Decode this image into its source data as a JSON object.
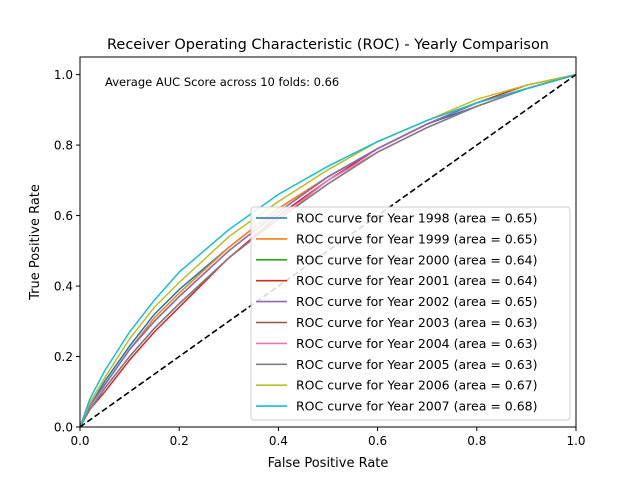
{
  "chart_data": {
    "type": "line",
    "title": "Receiver Operating Characteristic (ROC) - Yearly Comparison",
    "xlabel": "False Positive Rate",
    "ylabel": "True Positive Rate",
    "xlim": [
      0.0,
      1.0
    ],
    "ylim": [
      0.0,
      1.05
    ],
    "xticks": [
      0.0,
      0.2,
      0.4,
      0.6,
      0.8,
      1.0
    ],
    "yticks": [
      0.0,
      0.2,
      0.4,
      0.6,
      0.8,
      1.0
    ],
    "xtick_labels": [
      "0.0",
      "0.2",
      "0.4",
      "0.6",
      "0.8",
      "1.0"
    ],
    "ytick_labels": [
      "0.0",
      "0.2",
      "0.4",
      "0.6",
      "0.8",
      "1.0"
    ],
    "grid": false,
    "legend_placement": "lower-right",
    "annotation": "Average AUC Score across 10 folds: 0.66",
    "x": [
      0.0,
      0.02,
      0.05,
      0.1,
      0.15,
      0.2,
      0.3,
      0.4,
      0.5,
      0.6,
      0.7,
      0.8,
      0.9,
      1.0
    ],
    "series": [
      {
        "name": "ROC curve for Year 1998 (area = 0.65)",
        "color": "#1f77b4",
        "values": [
          0.0,
          0.06,
          0.13,
          0.23,
          0.32,
          0.39,
          0.51,
          0.62,
          0.71,
          0.79,
          0.86,
          0.91,
          0.96,
          1.0
        ]
      },
      {
        "name": "ROC curve for Year 1999 (area = 0.65)",
        "color": "#ff7f0e",
        "values": [
          0.0,
          0.06,
          0.12,
          0.22,
          0.31,
          0.38,
          0.51,
          0.62,
          0.71,
          0.79,
          0.86,
          0.92,
          0.96,
          1.0
        ]
      },
      {
        "name": "ROC curve for Year 2000 (area = 0.64)",
        "color": "#2ca02c",
        "values": [
          0.0,
          0.06,
          0.12,
          0.22,
          0.3,
          0.37,
          0.5,
          0.61,
          0.71,
          0.79,
          0.86,
          0.92,
          0.96,
          1.0
        ]
      },
      {
        "name": "ROC curve for Year 2001 (area = 0.64)",
        "color": "#d62728",
        "values": [
          0.0,
          0.05,
          0.1,
          0.19,
          0.27,
          0.34,
          0.48,
          0.6,
          0.7,
          0.79,
          0.86,
          0.92,
          0.97,
          1.0
        ]
      },
      {
        "name": "ROC curve for Year 2002 (area = 0.65)",
        "color": "#9467bd",
        "values": [
          0.0,
          0.06,
          0.12,
          0.22,
          0.3,
          0.37,
          0.5,
          0.61,
          0.71,
          0.79,
          0.86,
          0.92,
          0.96,
          1.0
        ]
      },
      {
        "name": "ROC curve for Year 2003 (area = 0.63)",
        "color": "#8c564b",
        "values": [
          0.0,
          0.05,
          0.11,
          0.2,
          0.28,
          0.35,
          0.48,
          0.59,
          0.69,
          0.78,
          0.85,
          0.91,
          0.96,
          1.0
        ]
      },
      {
        "name": "ROC curve for Year 2004 (area = 0.63)",
        "color": "#e377c2",
        "values": [
          0.0,
          0.05,
          0.11,
          0.2,
          0.28,
          0.35,
          0.48,
          0.59,
          0.7,
          0.78,
          0.85,
          0.91,
          0.96,
          1.0
        ]
      },
      {
        "name": "ROC curve for Year 2005 (area = 0.63)",
        "color": "#7f7f7f",
        "values": [
          0.0,
          0.05,
          0.11,
          0.2,
          0.28,
          0.35,
          0.48,
          0.59,
          0.69,
          0.78,
          0.85,
          0.91,
          0.96,
          1.0
        ]
      },
      {
        "name": "ROC curve for Year 2006 (area = 0.67)",
        "color": "#bcbd22",
        "values": [
          0.0,
          0.07,
          0.14,
          0.25,
          0.34,
          0.41,
          0.54,
          0.64,
          0.73,
          0.81,
          0.87,
          0.93,
          0.97,
          1.0
        ]
      },
      {
        "name": "ROC curve for Year 2007 (area = 0.68)",
        "color": "#17becf",
        "values": [
          0.0,
          0.08,
          0.16,
          0.27,
          0.36,
          0.44,
          0.56,
          0.66,
          0.74,
          0.81,
          0.87,
          0.92,
          0.96,
          1.0
        ]
      }
    ],
    "reference_line": {
      "x": [
        0.0,
        1.0
      ],
      "y": [
        0.0,
        1.0
      ],
      "color": "#000000",
      "style": "dashed"
    }
  }
}
